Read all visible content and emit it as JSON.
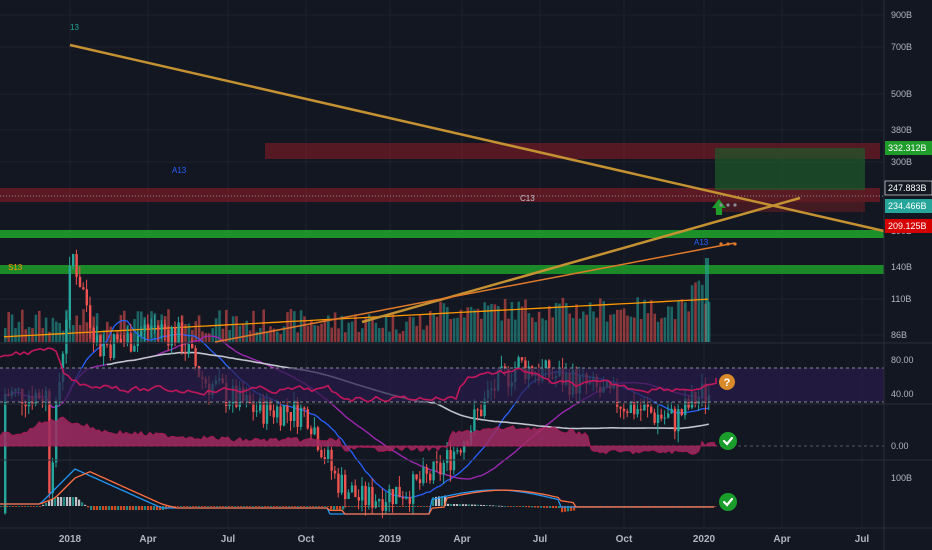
{
  "theme": {
    "background": "#131722",
    "grid": "#1e2230",
    "axis_text": "#b2b5be",
    "candle_up": "#26a69a",
    "candle_down": "#ef5350",
    "trendline": "#c49232",
    "support_band": "#1f9d2a",
    "resistance_band": "#8c1c24",
    "rsi_line": "#c2185b",
    "ma_white": "#c0c3cc",
    "ma_blue": "#2962ff",
    "ma_purple": "#9c27b0",
    "ma_orange": "#ff9800",
    "macd_line": "#2196f3",
    "signal_line": "#ff7043"
  },
  "chart_data": {
    "type": "candlestick",
    "scale": "log",
    "x_ticks": [
      "2018",
      "Apr",
      "Jul",
      "Oct",
      "2019",
      "Apr",
      "Jul",
      "Oct",
      "2020",
      "Apr",
      "Jul"
    ],
    "price_axis": {
      "ticks": [
        "900B",
        "700B",
        "500B",
        "380B",
        "300B",
        "190B",
        "140B",
        "110B",
        "86B"
      ],
      "range": [
        80,
        1000
      ]
    },
    "price_tags": [
      {
        "label": "332.312B",
        "value": 332.312,
        "color": "#1f9d2a"
      },
      {
        "label": "247.883B",
        "value": 247.883,
        "color": "#131722"
      },
      {
        "label": "234.466B",
        "value": 234.466,
        "color": "#26a69a"
      },
      {
        "label": "209.125B",
        "value": 209.125,
        "color": "#d50000"
      }
    ],
    "annotations": [
      "13",
      "A13",
      "C13",
      "A13",
      "S13"
    ],
    "price_path": [
      [
        "2017-12",
        100
      ],
      [
        "2018-01",
        640
      ],
      [
        "2018-02",
        330
      ],
      [
        "2018-03",
        340
      ],
      [
        "2018-04",
        380
      ],
      [
        "2018-05",
        360
      ],
      [
        "2018-06",
        260
      ],
      [
        "2018-07",
        230
      ],
      [
        "2018-08",
        210
      ],
      [
        "2018-09",
        210
      ],
      [
        "2018-10",
        205
      ],
      [
        "2018-11",
        130
      ],
      [
        "2018-12",
        110
      ],
      [
        "2019-01",
        115
      ],
      [
        "2019-02",
        120
      ],
      [
        "2019-03",
        135
      ],
      [
        "2019-04",
        175
      ],
      [
        "2019-05",
        240
      ],
      [
        "2019-06",
        290
      ],
      [
        "2019-07",
        270
      ],
      [
        "2019-08",
        260
      ],
      [
        "2019-09",
        240
      ],
      [
        "2019-10",
        220
      ],
      [
        "2019-11",
        205
      ],
      [
        "2019-12",
        195
      ],
      [
        "2020-01",
        234
      ]
    ],
    "rsi": {
      "ticks": [
        "80.00",
        "40.00"
      ],
      "range": [
        20,
        100
      ],
      "last": 60
    },
    "histogram_oscillator": {
      "ticks": [
        "0.00"
      ]
    },
    "macd": {
      "ticks": [
        "100B"
      ]
    },
    "signals": {
      "up_arrow": "arrow-up-icon",
      "rsi_status": "question-icon",
      "oscillator_status": "check-icon",
      "macd_status": "check-icon"
    }
  }
}
